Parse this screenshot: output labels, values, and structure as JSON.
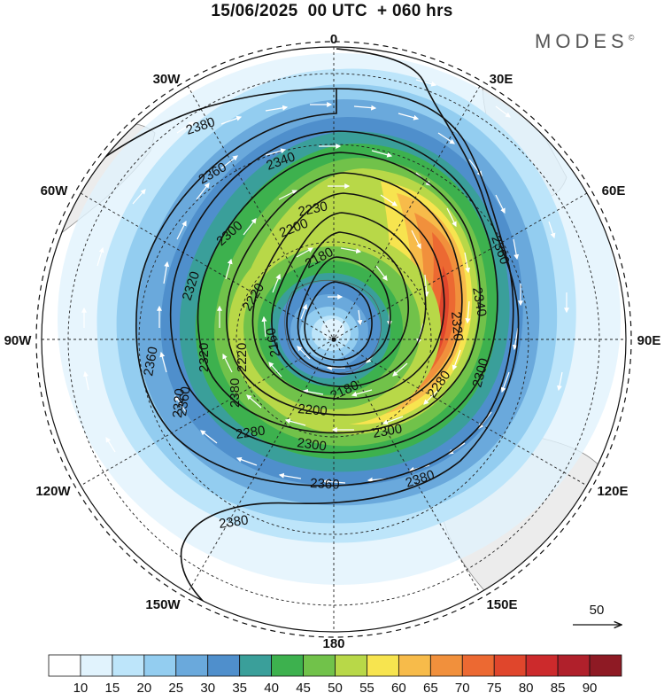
{
  "header": {
    "title": "15/06/2025  00 UTC  + 060 hrs",
    "brand": "MODES"
  },
  "map": {
    "projection": "south-polar-stereographic",
    "longitude_labels": [
      "0",
      "30E",
      "60E",
      "90E",
      "120E",
      "150E",
      "180",
      "150W",
      "120W",
      "90W",
      "60W",
      "30W"
    ],
    "contour_labels": [
      "2380",
      "2360",
      "2340",
      "2300",
      "2230",
      "2200",
      "2180",
      "2220",
      "2160",
      "2320",
      "2220",
      "2320",
      "2360",
      "2380",
      "2360",
      "2340",
      "2320",
      "2300",
      "2280",
      "2300",
      "2200",
      "2180",
      "2280",
      "2300",
      "2360",
      "2380",
      "2360",
      "2380",
      "2320"
    ],
    "vector_reference_label": "50"
  },
  "colorbar": {
    "colors": [
      "#ffffff",
      "#e1f3fd",
      "#bde5fa",
      "#93cdf0",
      "#6aa9dc",
      "#4f8fcc",
      "#3a9f9a",
      "#3db14e",
      "#71c24a",
      "#b8d848",
      "#f7e44f",
      "#f7bb4a",
      "#f1903c",
      "#ec6932",
      "#e0462c",
      "#cc2a2c",
      "#b0202b",
      "#8e1a24"
    ],
    "ticks": [
      "10",
      "15",
      "20",
      "25",
      "30",
      "35",
      "40",
      "45",
      "50",
      "55",
      "60",
      "65",
      "70",
      "75",
      "80",
      "85",
      "90"
    ]
  },
  "chart_data": {
    "type": "heatmap",
    "title": "15/06/2025  00 UTC  + 060 hrs",
    "field_levels": [
      10,
      15,
      20,
      25,
      30,
      35,
      40,
      45,
      50,
      55,
      60,
      65,
      70,
      75,
      80,
      85,
      90
    ],
    "contour_values": [
      2160,
      2180,
      2200,
      2220,
      2230,
      2280,
      2300,
      2320,
      2340,
      2360,
      2380
    ],
    "vector_reference": 50
  }
}
